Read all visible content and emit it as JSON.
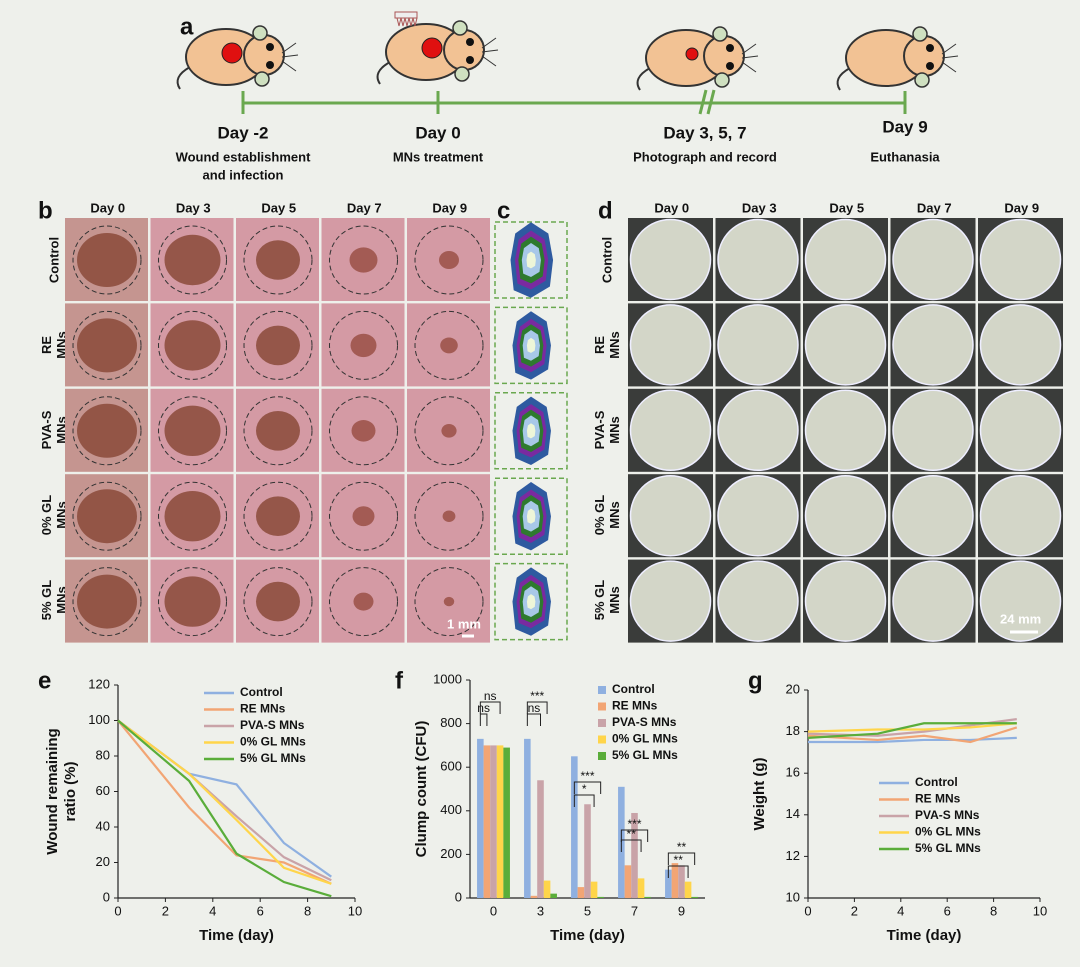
{
  "panel_letters": [
    "a",
    "b",
    "c",
    "d",
    "e",
    "f",
    "g"
  ],
  "timeline": {
    "days": [
      "Day -2",
      "Day 0",
      "Day 3, 5, 7",
      "Day 9"
    ],
    "descriptions": [
      [
        "Wound establishment",
        "and infection"
      ],
      [
        "MNs treatment"
      ],
      [
        "Photograph and record"
      ],
      [
        "Euthanasia"
      ]
    ]
  },
  "photo_columns": [
    "Day 0",
    "Day 3",
    "Day 5",
    "Day 7",
    "Day 9"
  ],
  "photo_rows": [
    [
      "Control"
    ],
    [
      "RE",
      "MNs"
    ],
    [
      "PVA-S",
      "MNs"
    ],
    [
      "0% GL",
      "MNs"
    ],
    [
      "5% GL",
      "MNs"
    ]
  ],
  "scale_bars": [
    "1 mm",
    "24 mm"
  ],
  "chart_data": [
    {
      "type": "line",
      "xlabel": "Time (day)",
      "ylabel": [
        "Wound remaining",
        "ratio (%)"
      ],
      "x": [
        0,
        3,
        5,
        7,
        9
      ],
      "xlim": [
        0,
        10
      ],
      "xticks": [
        0,
        2,
        4,
        6,
        8,
        10
      ],
      "ylim": [
        0,
        120
      ],
      "yticks": [
        0,
        20,
        40,
        60,
        80,
        100,
        120
      ],
      "series": [
        {
          "name": "Control",
          "color": "#8fb0e0",
          "values": [
            100,
            70,
            64,
            31,
            12
          ]
        },
        {
          "name": "RE MNs",
          "color": "#f2a574",
          "values": [
            100,
            51,
            24,
            20,
            8
          ]
        },
        {
          "name": "PVA-S MNs",
          "color": "#c9a3a8",
          "values": [
            100,
            70,
            46,
            23,
            10
          ]
        },
        {
          "name": "0% GL MNs",
          "color": "#ffd54a",
          "values": [
            100,
            70,
            44,
            17,
            8
          ]
        },
        {
          "name": "5% GL MNs",
          "color": "#5aad3a",
          "values": [
            100,
            66,
            25,
            9,
            1
          ]
        }
      ]
    },
    {
      "type": "bar",
      "xlabel": "Time (day)",
      "ylabel": [
        "Clump count (CFU)"
      ],
      "categories": [
        "0",
        "3",
        "5",
        "7",
        "9"
      ],
      "ylim": [
        0,
        1000
      ],
      "yticks": [
        0,
        200,
        400,
        600,
        800,
        1000
      ],
      "series": [
        {
          "name": "Control",
          "color": "#8fb0e0",
          "values": [
            730,
            730,
            650,
            510,
            130
          ]
        },
        {
          "name": "RE MNs",
          "color": "#f2a574",
          "values": [
            700,
            10,
            50,
            150,
            160
          ]
        },
        {
          "name": "PVA-S MNs",
          "color": "#c9a3a8",
          "values": [
            700,
            540,
            430,
            390,
            150
          ]
        },
        {
          "name": "0% GL MNs",
          "color": "#ffd54a",
          "values": [
            700,
            80,
            75,
            90,
            75
          ]
        },
        {
          "name": "5% GL MNs",
          "color": "#5aad3a",
          "values": [
            690,
            20,
            5,
            5,
            5
          ]
        }
      ],
      "annotations": [
        "ns",
        "ns",
        "***",
        "ns",
        "***",
        "*",
        "***",
        "**",
        "**",
        "**"
      ]
    },
    {
      "type": "line",
      "xlabel": "Time (day)",
      "ylabel": [
        "Weight (g)"
      ],
      "x": [
        0,
        3,
        5,
        7,
        9
      ],
      "xlim": [
        0,
        10
      ],
      "xticks": [
        0,
        2,
        4,
        6,
        8,
        10
      ],
      "ylim": [
        10,
        20
      ],
      "yticks": [
        10,
        12,
        14,
        16,
        18,
        20
      ],
      "series": [
        {
          "name": "Control",
          "color": "#8fb0e0",
          "values": [
            17.5,
            17.5,
            17.6,
            17.6,
            17.7
          ]
        },
        {
          "name": "RE MNs",
          "color": "#f2a574",
          "values": [
            17.8,
            17.6,
            17.8,
            17.5,
            18.2
          ]
        },
        {
          "name": "PVA-S MNs",
          "color": "#c9a3a8",
          "values": [
            17.9,
            17.8,
            18.0,
            18.3,
            18.6
          ]
        },
        {
          "name": "0% GL MNs",
          "color": "#ffd54a",
          "values": [
            18.0,
            18.1,
            18.1,
            18.2,
            18.4
          ]
        },
        {
          "name": "5% GL MNs",
          "color": "#5aad3a",
          "values": [
            17.7,
            17.9,
            18.4,
            18.4,
            18.4
          ]
        }
      ]
    }
  ]
}
